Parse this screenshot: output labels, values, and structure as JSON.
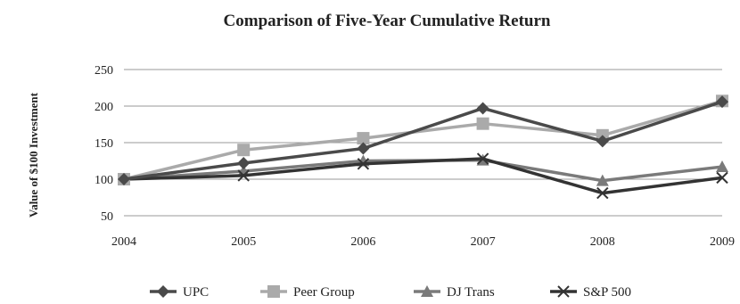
{
  "chart_data": {
    "type": "line",
    "title": "Comparison of Five-Year Cumulative Return",
    "ylabel": "Value of $100 Investment",
    "xlabel": "",
    "categories": [
      "2004",
      "2005",
      "2006",
      "2007",
      "2008",
      "2009"
    ],
    "yticks": [
      "50",
      "100",
      "150",
      "200",
      "250"
    ],
    "ylim": [
      50,
      250
    ],
    "grid": true,
    "legend_position": "bottom",
    "series": [
      {
        "name": "UPC",
        "values": [
          100,
          122,
          142,
          197,
          152,
          206
        ],
        "color": "#4a4a4a",
        "marker": "diamond"
      },
      {
        "name": "Peer Group",
        "values": [
          100,
          140,
          156,
          176,
          160,
          207
        ],
        "color": "#aaaaaa",
        "marker": "square"
      },
      {
        "name": "DJ Trans",
        "values": [
          100,
          111,
          125,
          126,
          98,
          117
        ],
        "color": "#7a7a7a",
        "marker": "triangle"
      },
      {
        "name": "S&P 500",
        "values": [
          100,
          105,
          121,
          128,
          81,
          102
        ],
        "color": "#333333",
        "marker": "x"
      }
    ]
  }
}
